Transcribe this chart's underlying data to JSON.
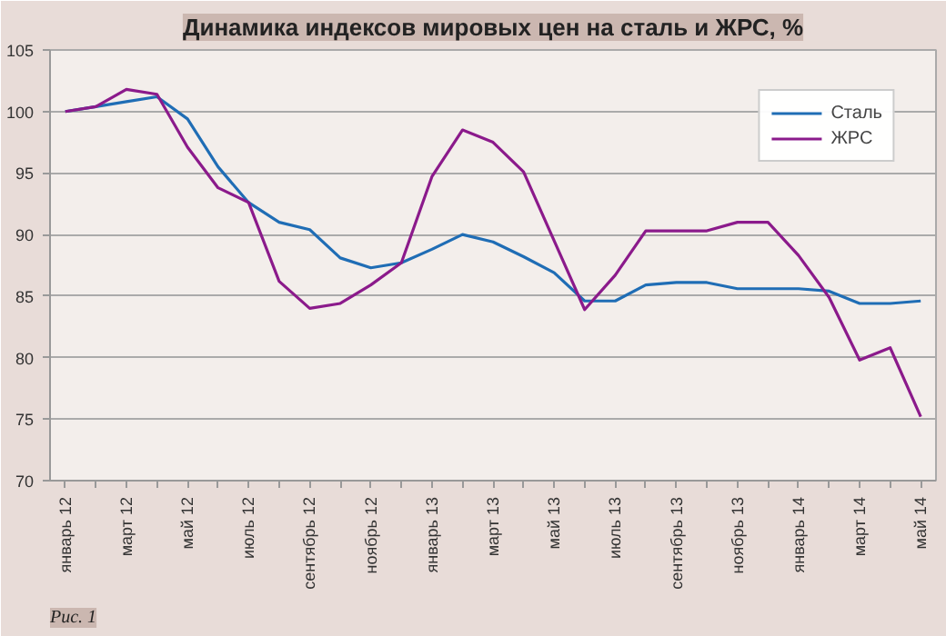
{
  "chart_data": {
    "type": "line",
    "title": "Динамика индексов мировых цен на сталь и ЖРС, %",
    "categories": [
      "январь 12",
      null,
      "март 12",
      null,
      "май 12",
      null,
      "июль 12",
      null,
      "сентябрь 12",
      null,
      "ноябрь 12",
      null,
      "январь 13",
      null,
      "март 13",
      null,
      "май 13",
      null,
      "июль 13",
      null,
      "сентябрь 13",
      null,
      "ноябрь 13",
      null,
      "январь 14",
      null,
      "март 14",
      null,
      "май 14"
    ],
    "series": [
      {
        "name": "Сталь",
        "color": "#1f6db5",
        "values": [
          100,
          100.4,
          100.8,
          101.2,
          99.4,
          95.5,
          92.6,
          91.0,
          90.4,
          88.1,
          87.3,
          87.7,
          88.8,
          90.0,
          89.4,
          88.2,
          86.9,
          84.6,
          84.6,
          85.9,
          86.1,
          86.1,
          85.6,
          85.6,
          85.6,
          85.4,
          84.4,
          84.4,
          84.6
        ]
      },
      {
        "name": "ЖРС",
        "color": "#8b1a8b",
        "values": [
          100,
          100.4,
          101.8,
          101.4,
          97.1,
          93.8,
          92.6,
          86.2,
          84.0,
          84.4,
          85.9,
          87.7,
          94.7,
          98.5,
          97.5,
          95.1,
          89.5,
          83.9,
          86.7,
          90.3,
          90.3,
          90.3,
          91.0,
          91.0,
          88.3,
          84.9,
          79.8,
          80.8,
          75.2
        ]
      }
    ],
    "ylim": [
      70,
      105
    ],
    "yticks": [
      70,
      75,
      80,
      85,
      90,
      95,
      100,
      105
    ],
    "grid": "y",
    "legend": "top right",
    "marker": "none",
    "line_style": "solid",
    "annotations": [
      "Рис. 1"
    ]
  }
}
